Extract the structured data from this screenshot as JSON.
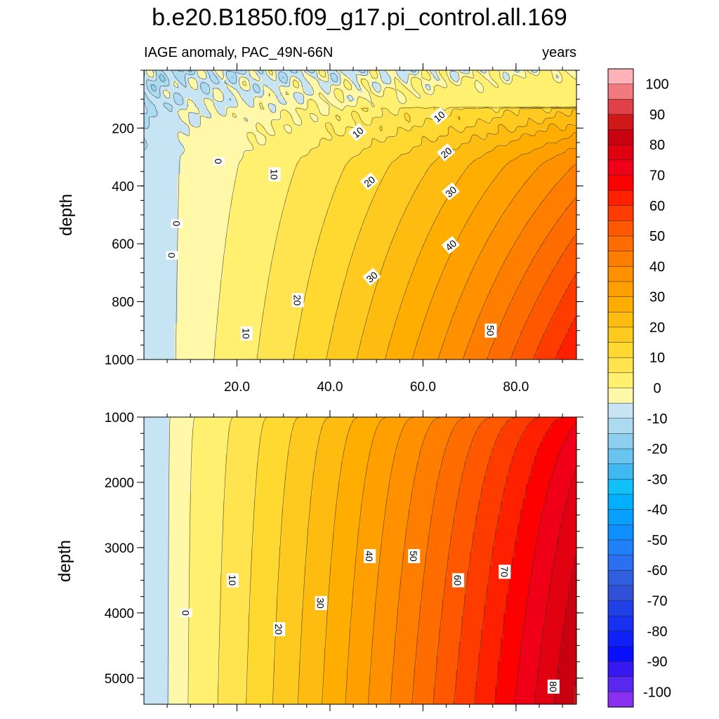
{
  "chart_data": {
    "type": "contour",
    "title": "b.e20.B1850.f09_g17.pi_control.all.169",
    "variable_label": "IAGE anomaly, PAC_49N-66N",
    "units_label": "years",
    "panels": [
      {
        "name": "upper",
        "ylabel": "depth",
        "ylim": [
          0,
          1000
        ],
        "xlim": [
          0,
          93
        ],
        "y_ticks": [
          200,
          400,
          600,
          800,
          1000
        ],
        "x_ticks": [
          20,
          40,
          60,
          80
        ],
        "x_tick_labels": [
          "20.0",
          "40.0",
          "60.0",
          "80.0"
        ],
        "contour_labels": [
          {
            "text": "0",
            "x": 7,
            "y": 530
          },
          {
            "text": "0",
            "x": 6,
            "y": 640
          },
          {
            "text": "0",
            "x": 16,
            "y": 315
          },
          {
            "text": "10",
            "x": 22,
            "y": 910
          },
          {
            "text": "10",
            "x": 28,
            "y": 360
          },
          {
            "text": "10",
            "x": 46,
            "y": 215
          },
          {
            "text": "10",
            "x": 63.5,
            "y": 160
          },
          {
            "text": "20",
            "x": 33,
            "y": 795
          },
          {
            "text": "20",
            "x": 48.5,
            "y": 385
          },
          {
            "text": "20",
            "x": 65,
            "y": 285
          },
          {
            "text": "30",
            "x": 49,
            "y": 715
          },
          {
            "text": "30",
            "x": 66,
            "y": 420
          },
          {
            "text": "40",
            "x": 66,
            "y": 605
          },
          {
            "text": "50",
            "x": 74.5,
            "y": 900
          }
        ]
      },
      {
        "name": "lower",
        "ylabel": "depth",
        "ylim": [
          1000,
          5400
        ],
        "xlim": [
          0,
          93
        ],
        "y_ticks": [
          1000,
          2000,
          3000,
          4000,
          5000
        ],
        "contour_labels": [
          {
            "text": "0",
            "x": 9,
            "y": 4000
          },
          {
            "text": "10",
            "x": 19,
            "y": 3500
          },
          {
            "text": "20",
            "x": 29,
            "y": 4250
          },
          {
            "text": "30",
            "x": 38,
            "y": 3850
          },
          {
            "text": "40",
            "x": 48.5,
            "y": 3130
          },
          {
            "text": "50",
            "x": 58,
            "y": 3130
          },
          {
            "text": "60",
            "x": 67.5,
            "y": 3500
          },
          {
            "text": "70",
            "x": 77.5,
            "y": 3370
          },
          {
            "text": "80",
            "x": 88,
            "y": 5130
          }
        ]
      }
    ],
    "colorbar": {
      "levels": [
        -100,
        -90,
        -80,
        -70,
        -60,
        -50,
        -40,
        -30,
        -20,
        -10,
        0,
        10,
        20,
        30,
        40,
        50,
        60,
        70,
        80,
        90,
        100
      ],
      "labels": [
        "-100",
        "-90",
        "-80",
        "-70",
        "-60",
        "-50",
        "-40",
        "-30",
        "-20",
        "-10",
        "0",
        "10",
        "20",
        "30",
        "40",
        "50",
        "60",
        "70",
        "80",
        "90",
        "100"
      ],
      "colors": [
        "#ffb3b8",
        "#f07a80",
        "#e04048",
        "#d01818",
        "#c80010",
        "#e00010",
        "#f00018",
        "#ff0000",
        "#ff2000",
        "#ff3c00",
        "#ff5800",
        "#ff6c00",
        "#ff7e00",
        "#ff9000",
        "#ffa000",
        "#ffae00",
        "#ffbc10",
        "#ffca20",
        "#ffd830",
        "#ffe450",
        "#fff070",
        "#fff8a8",
        "#c6e4f4",
        "#acdaf0",
        "#8ecff0",
        "#6ac4f0",
        "#40b8f2",
        "#10c0f8",
        "#00b0ff",
        "#08a0ff",
        "#1090ff",
        "#2080f8",
        "#2a70f0",
        "#3060e0",
        "#3050d8",
        "#2040e8",
        "#1830f0",
        "#1020f8",
        "#0810ff",
        "#3818f0",
        "#5828f0",
        "#8a30f0"
      ]
    }
  }
}
